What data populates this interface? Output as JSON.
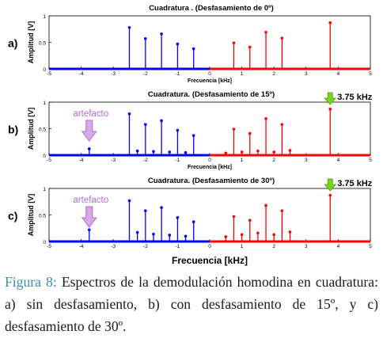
{
  "figure": {
    "caption_label": "Figura 8:",
    "caption_text": " Espectros de la demodulación homodina en cuadratura:  a) sin desfasamiento, b) con desfasamiento de 15º, y c) desfasamiento de 30º."
  },
  "chart_data": [
    {
      "type": "stem",
      "panel_label": "a)",
      "title": "Cuadratura . (Desfasamiento de 0º)",
      "xlabel": "Frecuencia [kHz]",
      "ylabel": "Amplitud [V]",
      "xlim": [
        -5,
        5
      ],
      "ylim": [
        0,
        1
      ],
      "xticks": [
        -5,
        -4,
        -3,
        -2,
        -1,
        0,
        1,
        2,
        3,
        4,
        5
      ],
      "yticks": [
        0,
        0.5,
        1
      ],
      "colors": {
        "negative": "#0000ff",
        "positive": "#ff0000"
      },
      "series": [
        {
          "x": [
            -2.5,
            -2.0,
            -1.5,
            -1.0,
            -0.5
          ],
          "values": [
            0.78,
            0.57,
            0.66,
            0.47,
            0.38
          ]
        },
        {
          "x": [
            0.75,
            1.25,
            1.75,
            2.25,
            3.75
          ],
          "values": [
            0.49,
            0.41,
            0.69,
            0.58,
            0.87
          ]
        }
      ],
      "annotations": []
    },
    {
      "type": "stem",
      "panel_label": "b)",
      "title": "Cuadratura.  (Desfasamiento de 15º)",
      "xlabel": "Frecuencia [kHz]",
      "ylabel": "Amplitud [V]",
      "xlim": [
        -5,
        5
      ],
      "ylim": [
        0,
        1
      ],
      "xticks": [
        -5,
        -4,
        -3,
        -2,
        -1,
        0,
        1,
        2,
        3,
        4,
        5
      ],
      "yticks": [
        0,
        0.5,
        1
      ],
      "colors": {
        "negative": "#0000ff",
        "positive": "#ff0000"
      },
      "series": [
        {
          "x": [
            -3.75,
            -2.5,
            -2.25,
            -2.0,
            -1.75,
            -1.5,
            -1.25,
            -1.0,
            -0.75,
            -0.5
          ],
          "values": [
            0.12,
            0.78,
            0.08,
            0.58,
            0.07,
            0.65,
            0.06,
            0.47,
            0.05,
            0.37
          ]
        },
        {
          "x": [
            0.5,
            0.75,
            1.0,
            1.25,
            1.5,
            1.75,
            2.0,
            2.25,
            2.5,
            3.75
          ],
          "values": [
            0.04,
            0.49,
            0.06,
            0.41,
            0.08,
            0.69,
            0.06,
            0.58,
            0.09,
            0.87
          ]
        }
      ],
      "annotations": [
        {
          "text": "artefacto",
          "kind": "down-arrow",
          "color": "#b06cc8",
          "x": -3.75
        },
        {
          "text": "3.75 kHz",
          "kind": "down-arrow",
          "color": "#7ed321",
          "x": 3.75
        }
      ]
    },
    {
      "type": "stem",
      "panel_label": "c)",
      "title": "Cuadratura. (Desfasamiento de 30º)",
      "xlabel": "Frecuencia [kHz]",
      "ylabel": "Amplitud [V]",
      "xlim": [
        -5,
        5
      ],
      "ylim": [
        0,
        1
      ],
      "xticks": [
        -5,
        -4,
        -3,
        -2,
        -1,
        0,
        1,
        2,
        3,
        4,
        5
      ],
      "yticks": [
        0,
        0.5,
        1
      ],
      "colors": {
        "negative": "#0000ff",
        "positive": "#ff0000"
      },
      "series": [
        {
          "x": [
            -3.75,
            -2.5,
            -2.25,
            -2.0,
            -1.75,
            -1.5,
            -1.25,
            -1.0,
            -0.75,
            -0.5
          ],
          "values": [
            0.22,
            0.77,
            0.17,
            0.58,
            0.14,
            0.64,
            0.12,
            0.45,
            0.1,
            0.37
          ]
        },
        {
          "x": [
            0.5,
            0.75,
            1.0,
            1.25,
            1.5,
            1.75,
            2.0,
            2.25,
            2.5,
            3.75
          ],
          "values": [
            0.09,
            0.47,
            0.13,
            0.4,
            0.16,
            0.68,
            0.13,
            0.58,
            0.18,
            0.87
          ]
        }
      ],
      "annotations": [
        {
          "text": "artefacto",
          "kind": "down-arrow",
          "color": "#b06cc8",
          "x": -3.75
        },
        {
          "text": "3.75 kHz",
          "kind": "down-arrow",
          "color": "#7ed321",
          "x": 3.75
        }
      ]
    }
  ],
  "shared_xlabel": "Frecuencia  [kHz]"
}
